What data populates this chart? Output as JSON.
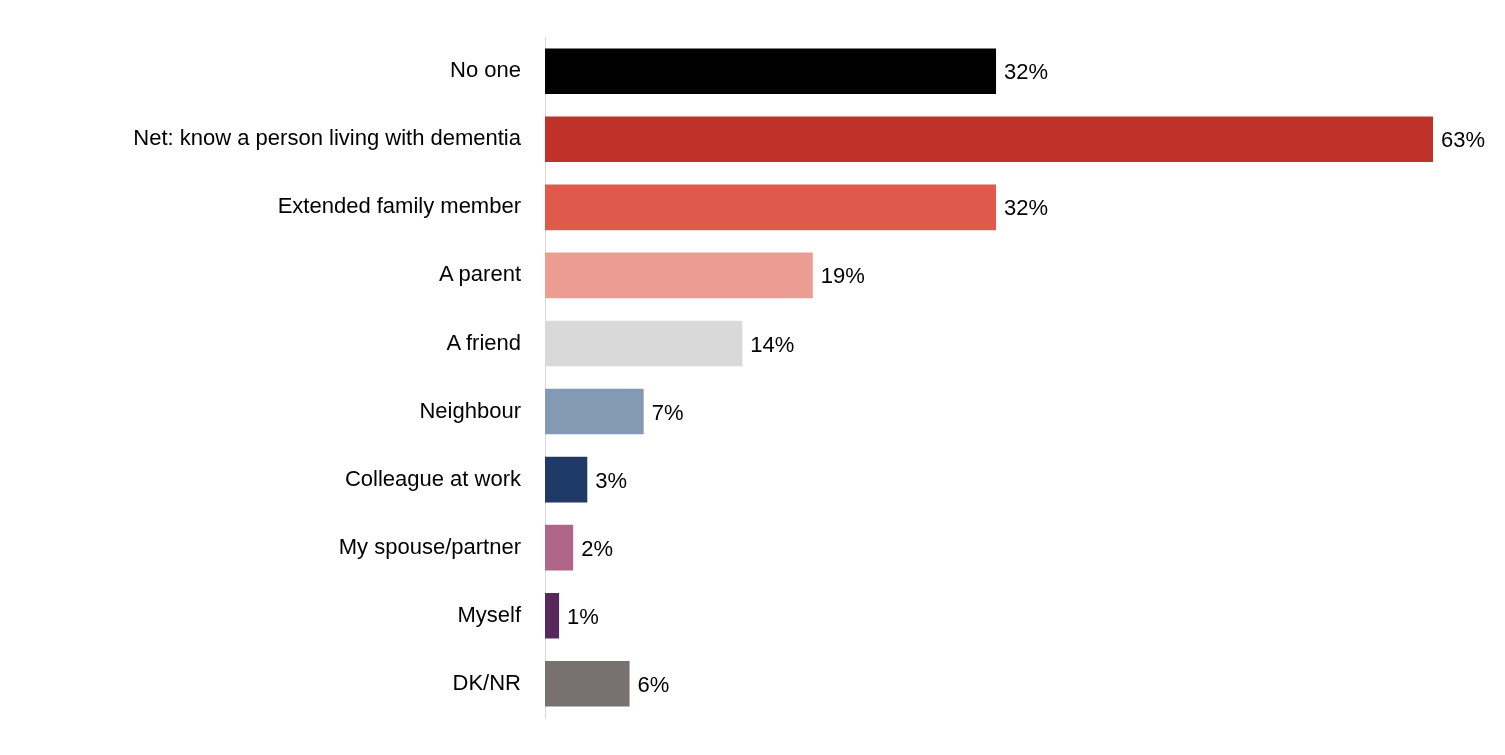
{
  "chart_data": {
    "type": "bar",
    "orientation": "horizontal",
    "categories": [
      "No one",
      "Net: know a person living with dementia",
      "Extended family member",
      "A parent",
      "A friend",
      "Neighbour",
      "Colleague at work",
      "My spouse/partner",
      "Myself",
      "DK/NR"
    ],
    "values": [
      32,
      63,
      32,
      19,
      14,
      7,
      3,
      2,
      1,
      6
    ],
    "colors": [
      "#000000",
      "#c0312a",
      "#e05a4c",
      "#ec9c93",
      "#d9d9d9",
      "#8499b3",
      "#1f3a66",
      "#b06688",
      "#57285b",
      "#777271"
    ],
    "value_labels": [
      "32%",
      "63%",
      "32%",
      "19%",
      "14%",
      "7%",
      "3%",
      "2%",
      "1%",
      "6%"
    ]
  }
}
